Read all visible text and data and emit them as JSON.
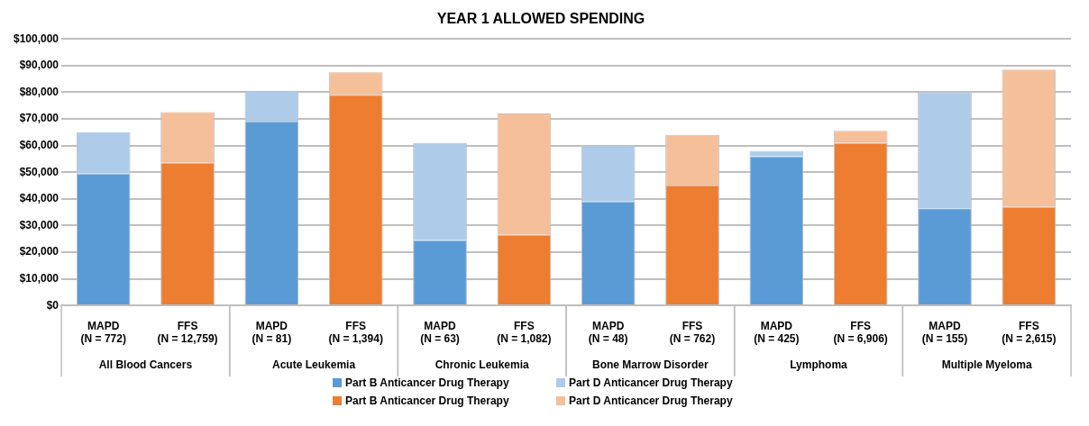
{
  "chart_data": {
    "type": "bar",
    "title": "YEAR 1 ALLOWED SPENDING",
    "categories": [
      "MAPD\n(N = 772)",
      "FFS\n(N = 12,759)",
      "MAPD\n(N = 81)",
      "FFS\n(N = 1,394)",
      "MAPD\n(N = 63)",
      "FFS\n(N = 1,082)",
      "MAPD\n(N = 48)",
      "FFS\n(N = 762)",
      "MAPD\n(N = 425)",
      "FFS\n(N = 6,906)",
      "MAPD\n(N = 155)",
      "FFS\n(N = 2,615)"
    ],
    "annotations": [
      "All Blood Cancers",
      "Acute Leukemia",
      "Chronic Leukemia",
      "Bone Marrow Disorder",
      "Lymphoma",
      "Multiple Myeloma"
    ],
    "stacked": true,
    "series": [
      {
        "name": "Part B Anticancer Drug Therapy",
        "color": "#5b9bd5",
        "values": [
          49500,
          null,
          69000,
          null,
          24500,
          null,
          39000,
          null,
          56000,
          null,
          36500,
          null
        ]
      },
      {
        "name": "Part D Anticancer Drug Therapy",
        "color": "#aecbea",
        "values": [
          15500,
          null,
          11500,
          null,
          36500,
          null,
          21000,
          null,
          2000,
          null,
          43500,
          null
        ]
      },
      {
        "name": "Part B Anticancer Drug Therapy",
        "color": "#ed7d31",
        "values": [
          null,
          53500,
          null,
          79000,
          null,
          26500,
          null,
          45000,
          null,
          61000,
          null,
          37000
        ]
      },
      {
        "name": "Part D Anticancer Drug Therapy",
        "color": "#f5bf9a",
        "values": [
          null,
          19000,
          null,
          8500,
          null,
          45500,
          null,
          19000,
          null,
          4500,
          null,
          51500
        ]
      }
    ],
    "ylim": [
      0,
      100000
    ],
    "yticks": [
      {
        "value": 0,
        "label": "$0"
      },
      {
        "value": 10000,
        "label": "$10,000"
      },
      {
        "value": 20000,
        "label": "$20,000"
      },
      {
        "value": 30000,
        "label": "$30,000"
      },
      {
        "value": 40000,
        "label": "$40,000"
      },
      {
        "value": 50000,
        "label": "$50,000"
      },
      {
        "value": 60000,
        "label": "$60,000"
      },
      {
        "value": 70000,
        "label": "$70,000"
      },
      {
        "value": 80000,
        "label": "$80,000"
      },
      {
        "value": 90000,
        "label": "$90,000"
      },
      {
        "value": 100000,
        "label": "$100,000"
      }
    ],
    "grid": "y",
    "legend": "bottom"
  }
}
